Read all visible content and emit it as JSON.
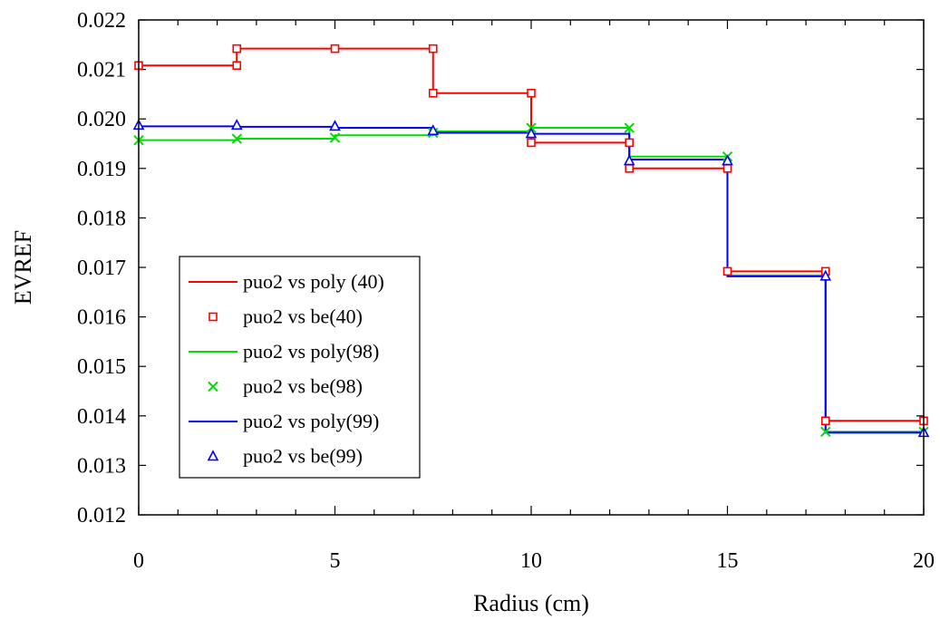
{
  "chart_data": {
    "type": "line",
    "title": "",
    "xlabel": "Radius (cm)",
    "ylabel": "EVREF",
    "xlim": [
      0,
      20
    ],
    "ylim": [
      0.012,
      0.022
    ],
    "x_ticks": [
      "0",
      "5",
      "10",
      "15",
      "20"
    ],
    "y_ticks": [
      "0.012",
      "0.013",
      "0.014",
      "0.015",
      "0.016",
      "0.017",
      "0.018",
      "0.019",
      "0.020",
      "0.021",
      "0.022"
    ],
    "grid": false,
    "legend_position": "lower-left",
    "series": [
      {
        "name": "puo2 vs poly (40)",
        "kind": "step-line",
        "color": "#ff0000",
        "x": [
          0,
          2.5,
          5,
          7.5,
          10,
          12.5,
          15,
          17.5,
          20
        ],
        "y": [
          0.02108,
          0.02142,
          0.02142,
          0.02052,
          0.01952,
          0.019,
          0.01692,
          0.0139,
          0.0139
        ]
      },
      {
        "name": "puo2 vs be(40)",
        "kind": "markers",
        "marker": "square",
        "color": "#ff0000",
        "x": [
          0,
          2.5,
          2.5,
          5,
          7.5,
          7.5,
          10,
          10,
          12.5,
          12.5,
          15,
          15,
          17.5,
          17.5,
          20
        ],
        "y": [
          0.02108,
          0.02108,
          0.02142,
          0.02142,
          0.02142,
          0.02052,
          0.02052,
          0.01952,
          0.01952,
          0.019,
          0.019,
          0.01692,
          0.01692,
          0.0139,
          0.0139
        ]
      },
      {
        "name": "puo2 vs poly(98)",
        "kind": "step-line",
        "color": "#00dd00",
        "x": [
          0,
          2.5,
          5,
          7.5,
          10,
          12.5,
          15,
          17.5,
          20
        ],
        "y": [
          0.01957,
          0.0196,
          0.01967,
          0.01975,
          0.01982,
          0.01924,
          0.01684,
          0.01368,
          0.01368
        ]
      },
      {
        "name": "puo2 vs be(98)",
        "kind": "markers",
        "marker": "x",
        "color": "#00dd00",
        "x": [
          0,
          2.5,
          5,
          7.5,
          10,
          12.5,
          15,
          17.5,
          20
        ],
        "y": [
          0.01957,
          0.0196,
          0.01962,
          0.01972,
          0.01982,
          0.01982,
          0.01924,
          0.01368,
          0.01368
        ]
      },
      {
        "name": "puo2 vs poly(99)",
        "kind": "step-line",
        "color": "#0000ff",
        "x": [
          0,
          2.5,
          5,
          7.5,
          10,
          12.5,
          15,
          17.5,
          20
        ],
        "y": [
          0.01985,
          0.01984,
          0.01982,
          0.01972,
          0.0197,
          0.01918,
          0.01682,
          0.01366,
          0.01366
        ]
      },
      {
        "name": "puo2 vs be(99)",
        "kind": "markers",
        "marker": "triangle",
        "color": "#0000ff",
        "x": [
          0,
          2.5,
          5,
          7.5,
          10,
          12.5,
          15,
          17.5,
          20
        ],
        "y": [
          0.01987,
          0.01987,
          0.01985,
          0.01976,
          0.0197,
          0.01915,
          0.01915,
          0.01682,
          0.01366
        ]
      }
    ]
  }
}
